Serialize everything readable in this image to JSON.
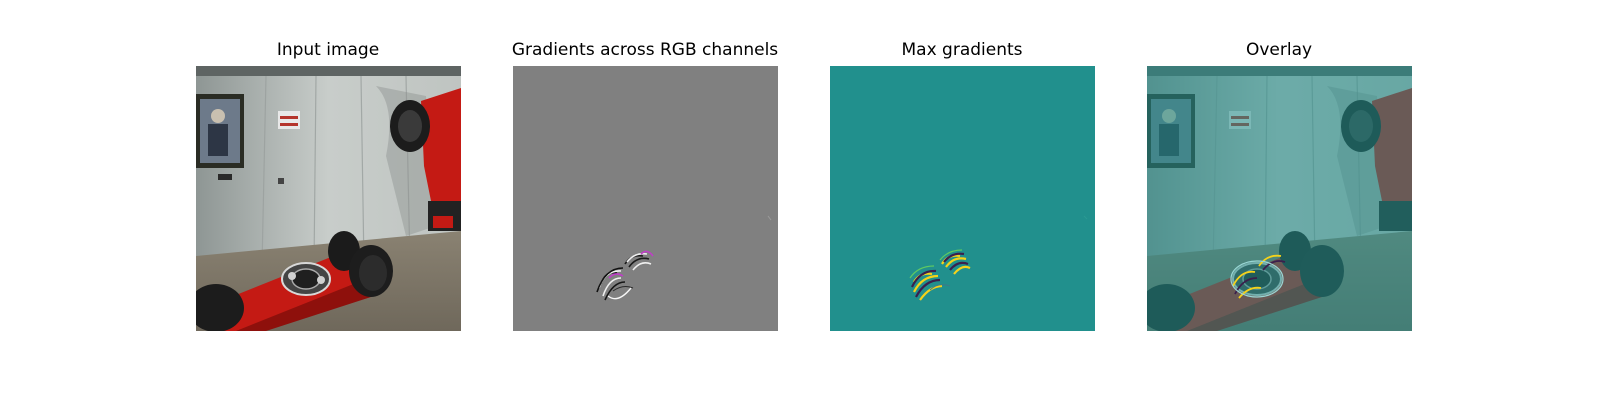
{
  "figure": {
    "panels": [
      {
        "title": "Input image"
      },
      {
        "title": "Gradients across RGB channels"
      },
      {
        "title": "Max gradients"
      },
      {
        "title": "Overlay"
      }
    ]
  },
  "colors": {
    "background": "#ffffff",
    "gradient_gray": "#808080",
    "max_gradient_teal": "#21908d",
    "robot_red": "#c41a14",
    "highlight_yellow": "#f5d21a"
  },
  "icons": [
    "framed-portrait-image",
    "robot-arm-image"
  ]
}
